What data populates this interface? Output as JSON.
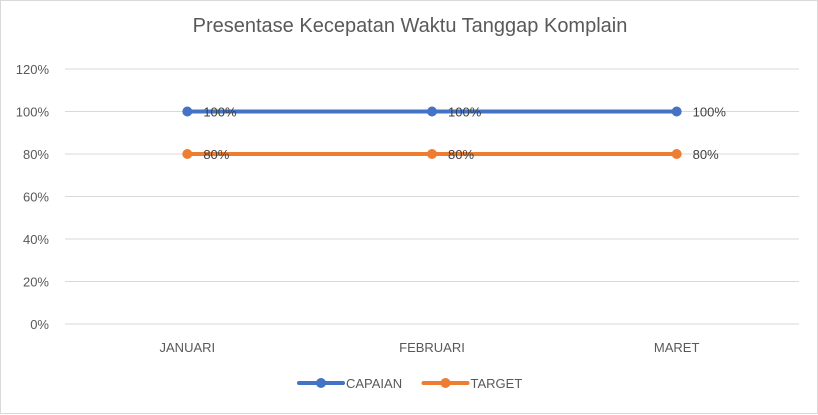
{
  "chart_data": {
    "type": "line",
    "title": "Presentase Kecepatan Waktu Tanggap Komplain",
    "xlabel": "",
    "ylabel": "",
    "categories": [
      "JANUARI",
      "FEBRUARI",
      "MARET"
    ],
    "ylim": [
      0,
      120
    ],
    "y_ticks": [
      0,
      20,
      40,
      60,
      80,
      100,
      120
    ],
    "y_tick_format": "%",
    "grid": "horizontal",
    "legend_position": "bottom",
    "series": [
      {
        "name": "CAPAIAN",
        "values": [
          100,
          100,
          100
        ],
        "labels": [
          "100%",
          "100%",
          "100%"
        ],
        "color": "#4472c4"
      },
      {
        "name": "TARGET",
        "values": [
          80,
          80,
          80
        ],
        "labels": [
          "80%",
          "80%",
          "80%"
        ],
        "color": "#ed7d31"
      }
    ]
  }
}
